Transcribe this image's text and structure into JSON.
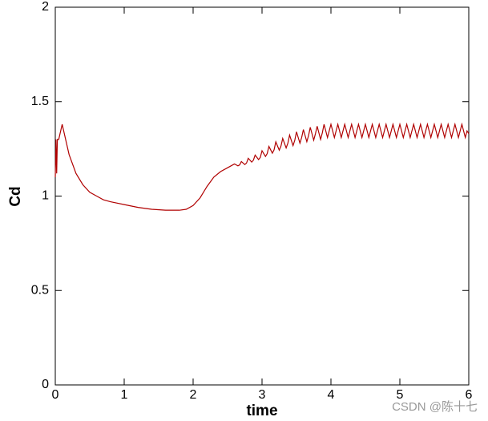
{
  "chart_data": {
    "type": "line",
    "x_label": "time",
    "y_label": "Cd",
    "x": [
      0,
      0.01,
      0.02,
      0.03,
      0.05,
      0.1,
      0.15,
      0.2,
      0.3,
      0.4,
      0.5,
      0.6,
      0.7,
      0.8,
      1.0,
      1.2,
      1.4,
      1.6,
      1.8,
      1.9,
      2.0,
      2.1,
      2.2,
      2.3,
      2.4,
      2.5,
      2.6,
      2.625,
      2.65,
      2.675,
      2.7,
      2.725,
      2.75,
      2.775,
      2.8,
      2.825,
      2.85,
      2.875,
      2.9,
      2.925,
      2.95,
      2.975,
      3.0,
      3.025,
      3.05,
      3.075,
      3.1,
      3.125,
      3.15,
      3.175,
      3.2,
      3.225,
      3.25,
      3.275,
      3.3,
      3.325,
      3.35,
      3.375,
      3.4,
      3.425,
      3.45,
      3.475,
      3.5,
      3.525,
      3.55,
      3.575,
      3.6,
      3.625,
      3.65,
      3.675,
      3.7,
      3.725,
      3.75,
      3.775,
      3.8,
      3.825,
      3.85,
      3.875,
      3.9,
      3.925,
      3.95,
      3.975,
      4.0,
      4.025,
      4.05,
      4.075,
      4.1,
      4.125,
      4.15,
      4.175,
      4.2,
      4.225,
      4.25,
      4.275,
      4.3,
      4.325,
      4.35,
      4.375,
      4.4,
      4.425,
      4.45,
      4.475,
      4.5,
      4.525,
      4.55,
      4.575,
      4.6,
      4.625,
      4.65,
      4.675,
      4.7,
      4.725,
      4.75,
      4.775,
      4.8,
      4.825,
      4.85,
      4.875,
      4.9,
      4.925,
      4.95,
      4.975,
      5.0,
      5.025,
      5.05,
      5.075,
      5.1,
      5.125,
      5.15,
      5.175,
      5.2,
      5.225,
      5.25,
      5.275,
      5.3,
      5.325,
      5.35,
      5.375,
      5.4,
      5.425,
      5.45,
      5.475,
      5.5,
      5.525,
      5.55,
      5.575,
      5.6,
      5.625,
      5.65,
      5.675,
      5.7,
      5.725,
      5.75,
      5.775,
      5.8,
      5.825,
      5.85,
      5.875,
      5.9,
      5.925,
      5.95,
      5.975,
      6.0
    ],
    "series": [
      {
        "color": "#b00000",
        "values": [
          1.1,
          1.3,
          1.12,
          1.3,
          1.3,
          1.38,
          1.3,
          1.22,
          1.12,
          1.06,
          1.02,
          1.0,
          0.98,
          0.97,
          0.955,
          0.94,
          0.93,
          0.925,
          0.925,
          0.93,
          0.95,
          0.99,
          1.05,
          1.1,
          1.13,
          1.15,
          1.17,
          1.165,
          1.16,
          1.165,
          1.183,
          1.175,
          1.167,
          1.175,
          1.2,
          1.19,
          1.18,
          1.19,
          1.217,
          1.205,
          1.193,
          1.205,
          1.24,
          1.225,
          1.21,
          1.225,
          1.263,
          1.245,
          1.227,
          1.245,
          1.287,
          1.265,
          1.243,
          1.265,
          1.305,
          1.28,
          1.255,
          1.28,
          1.323,
          1.295,
          1.267,
          1.295,
          1.34,
          1.31,
          1.28,
          1.31,
          1.352,
          1.32,
          1.288,
          1.32,
          1.364,
          1.33,
          1.296,
          1.33,
          1.37,
          1.335,
          1.3,
          1.335,
          1.38,
          1.345,
          1.31,
          1.345,
          1.38,
          1.345,
          1.31,
          1.345,
          1.38,
          1.345,
          1.31,
          1.345,
          1.38,
          1.345,
          1.31,
          1.345,
          1.38,
          1.345,
          1.31,
          1.345,
          1.38,
          1.345,
          1.31,
          1.345,
          1.38,
          1.345,
          1.31,
          1.345,
          1.38,
          1.345,
          1.31,
          1.345,
          1.38,
          1.345,
          1.31,
          1.345,
          1.38,
          1.345,
          1.31,
          1.345,
          1.38,
          1.345,
          1.31,
          1.345,
          1.38,
          1.345,
          1.31,
          1.345,
          1.38,
          1.345,
          1.31,
          1.345,
          1.38,
          1.345,
          1.31,
          1.345,
          1.38,
          1.345,
          1.31,
          1.345,
          1.38,
          1.345,
          1.31,
          1.345,
          1.38,
          1.345,
          1.31,
          1.345,
          1.38,
          1.345,
          1.31,
          1.345,
          1.38,
          1.345,
          1.31,
          1.345,
          1.38,
          1.345,
          1.31,
          1.345,
          1.38,
          1.345,
          1.31,
          1.345,
          1.33
        ]
      }
    ],
    "xlim": [
      0,
      6
    ],
    "ylim": [
      0,
      2
    ],
    "xticks": [
      0,
      1,
      2,
      3,
      4,
      5,
      6
    ],
    "yticks": [
      0,
      0.5,
      1,
      1.5,
      2
    ],
    "grid": false
  },
  "watermark": "CSDN @陈十七"
}
